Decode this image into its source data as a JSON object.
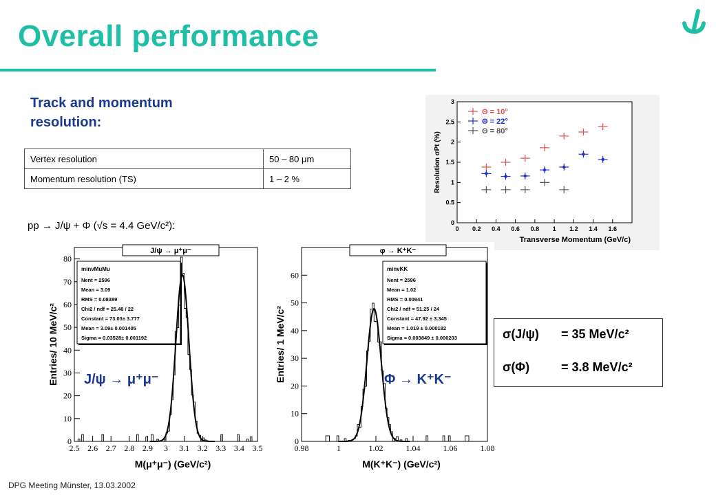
{
  "slide": {
    "title": "Overall performance",
    "section_title": "Track and momentum resolution:",
    "reaction": "pp → J/ψ + Φ (√s = 4.4 GeV/c²):",
    "footer": "DPG Meeting Münster,  13.03.2002"
  },
  "table": {
    "rows": [
      {
        "label": "Vertex resolution",
        "value": "50 – 80 μm"
      },
      {
        "label": "Momentum resolution (TS)",
        "value": "1 – 2 %"
      }
    ]
  },
  "colors": {
    "accent": "#1fbfa5",
    "section": "#1a3a8f",
    "formula": "#1a3a8f"
  },
  "sigma_box": {
    "row1_sym": "σ(J/ψ)",
    "row1_val": "= 35 MeV/c²",
    "row2_sym": "σ(Φ)",
    "row2_val": "= 3.8 MeV/c²"
  },
  "chart_data": [
    {
      "type": "scatter",
      "xlabel": "Transverse Momentum (GeV/c)",
      "ylabel": "Resolution σPt (%)",
      "xlim": [
        0,
        1.8
      ],
      "ylim": [
        0,
        3
      ],
      "x_ticks": [
        "0",
        "0.2",
        "0.4",
        "0.6",
        "0.8",
        "1",
        "1.2",
        "1.4",
        "1.6"
      ],
      "y_ticks": [
        "0",
        "0.5",
        "1",
        "1.5",
        "2",
        "2.5",
        "3"
      ],
      "legend_position": "top-left",
      "series": [
        {
          "name": "Θ = 10°",
          "color": "#e05050",
          "x": [
            0.3,
            0.5,
            0.7,
            0.9,
            1.1,
            1.3,
            1.5
          ],
          "y": [
            1.38,
            1.5,
            1.6,
            1.86,
            2.15,
            2.25,
            2.38
          ]
        },
        {
          "name": "Θ = 22°",
          "color": "#1a2fd0",
          "x": [
            0.3,
            0.5,
            0.7,
            0.9,
            1.1,
            1.3,
            1.5
          ],
          "y": [
            1.22,
            1.15,
            1.16,
            1.31,
            1.38,
            1.7,
            1.57
          ]
        },
        {
          "name": "Θ = 80°",
          "color": "#555555",
          "x": [
            0.3,
            0.5,
            0.7,
            0.9,
            1.1
          ],
          "y": [
            0.82,
            0.82,
            0.82,
            1.0,
            0.82
          ]
        }
      ]
    },
    {
      "type": "bar",
      "histogram_title": "J/ψ → μ⁺μ⁻",
      "xlabel": "M(μ⁺μ⁻)  (GeV/c²)",
      "ylabel": "Entries/ 10 MeV/c²",
      "xlim": [
        2.5,
        3.5
      ],
      "ylim": [
        0,
        85
      ],
      "x_ticks": [
        "2.5",
        "2.6",
        "2.7",
        "2.8",
        "2.9",
        "3",
        "3.1",
        "3.2",
        "3.3",
        "3.4",
        "3.5"
      ],
      "y_ticks": [
        "0",
        "10",
        "20",
        "30",
        "40",
        "50",
        "60",
        "70",
        "80"
      ],
      "stats": {
        "name": "minvMuMu",
        "lines": [
          "Nent = 2596",
          "Mean  =  3.09",
          "RMS   = 0.08389",
          "Chi2 / ndf = 25.48 / 22",
          "Constant = 73.03± 3.777",
          "Mean     =  3.09± 0.001405",
          "Sigma    = 0.03528± 0.001192"
        ]
      },
      "fit": {
        "constant": 73.03,
        "mean": 3.09,
        "sigma": 0.03528
      },
      "annotation": "J/ψ → μ⁺μ⁻"
    },
    {
      "type": "bar",
      "histogram_title": "φ → K⁺K⁻",
      "xlabel": "M(K⁺K⁻)  (GeV/c²)",
      "ylabel": "Entries/ 1 MeV/c²",
      "xlim": [
        0.98,
        1.08
      ],
      "ylim": [
        0,
        70
      ],
      "x_ticks": [
        "0.98",
        "1",
        "1.02",
        "1.04",
        "1.06",
        "1.08"
      ],
      "y_ticks": [
        "0",
        "10",
        "20",
        "30",
        "40",
        "50",
        "60"
      ],
      "stats": {
        "name": "minvKK",
        "lines": [
          "Nent = 2596",
          "Mean  =  1.02",
          "RMS   = 0.00941",
          "Chi2 / ndf = 51.25 / 24",
          "Constant = 47.92 ± 3.345",
          "Mean     =  1.019 ± 0.000182",
          "Sigma    = 0.003849 ± 0.000203"
        ]
      },
      "fit": {
        "constant": 47.92,
        "mean": 1.019,
        "sigma": 0.003849
      },
      "annotation": "Φ → K⁺K⁻"
    }
  ]
}
